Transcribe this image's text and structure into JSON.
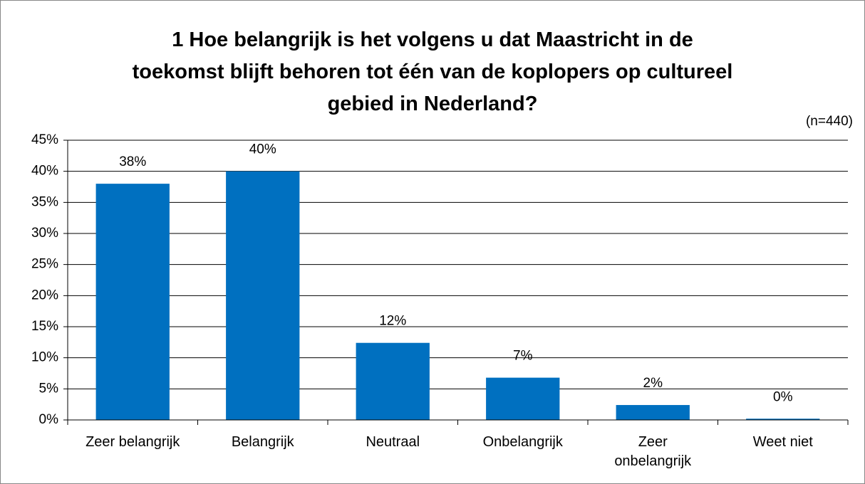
{
  "chart_data": {
    "type": "bar",
    "title": "1 Hoe belangrijk is het volgens u dat Maastricht in de toekomst blijft behoren tot één van de koplopers op cultureel gebied in Nederland?",
    "subtitle": "(n=440)",
    "categories": [
      "Zeer belangrijk",
      "Belangrijk",
      "Neutraal",
      "Onbelangrijk",
      "Zeer onbelangrijk",
      "Weet niet"
    ],
    "values": [
      38,
      40,
      12.4,
      6.8,
      2.4,
      0.2
    ],
    "value_labels": [
      "38%",
      "40%",
      "12%",
      "7%",
      "2%",
      "0%"
    ],
    "color": "#0070c0",
    "ylim": [
      0,
      45
    ],
    "yticks": [
      {
        "value": 0,
        "label": "0%"
      },
      {
        "value": 5,
        "label": "5%"
      },
      {
        "value": 10,
        "label": "10%"
      },
      {
        "value": 15,
        "label": "15%"
      },
      {
        "value": 20,
        "label": "20%"
      },
      {
        "value": 25,
        "label": "25%"
      },
      {
        "value": 30,
        "label": "30%"
      },
      {
        "value": 35,
        "label": "35%"
      },
      {
        "value": 40,
        "label": "40%"
      },
      {
        "value": 45,
        "label": "45%"
      }
    ],
    "grid": true
  }
}
